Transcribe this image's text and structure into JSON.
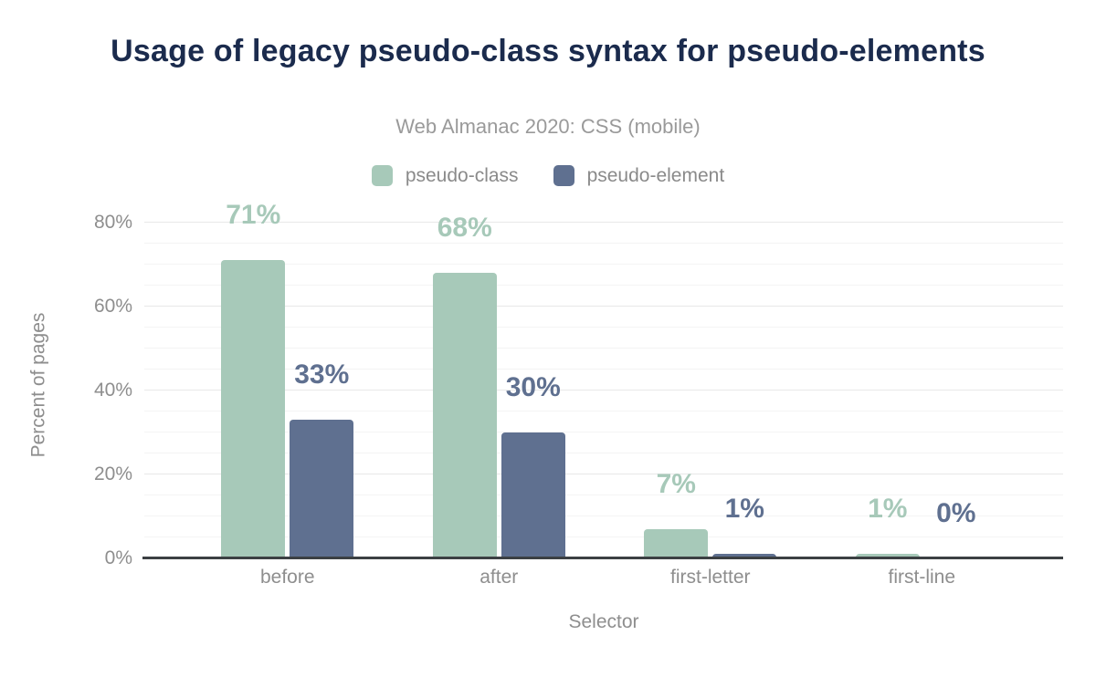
{
  "chart_data": {
    "type": "bar",
    "title": "Usage of legacy pseudo-class syntax for pseudo-elements",
    "subtitle": "Web Almanac 2020: CSS (mobile)",
    "categories": [
      "before",
      "after",
      "first-letter",
      "first-line"
    ],
    "series": [
      {
        "name": "pseudo-class",
        "color": "#a7c9b9",
        "values": [
          71,
          68,
          7,
          1
        ],
        "labels": [
          "71%",
          "68%",
          "7%",
          "1%"
        ]
      },
      {
        "name": "pseudo-element",
        "color": "#5f7090",
        "values": [
          33,
          30,
          1,
          0
        ],
        "labels": [
          "33%",
          "30%",
          "1%",
          "0%"
        ]
      }
    ],
    "xlabel": "Selector",
    "ylabel": "Percent of pages",
    "unit": "%",
    "yticks": [
      {
        "label": "0%",
        "value": 0
      },
      {
        "label": "20%",
        "value": 20
      },
      {
        "label": "40%",
        "value": 40
      },
      {
        "label": "60%",
        "value": 60
      },
      {
        "label": "80%",
        "value": 80
      }
    ],
    "ylim": [
      0,
      85
    ],
    "grid": {
      "orientation": "horizontal",
      "minor_step": 5,
      "major_step": 20,
      "max": 80
    },
    "legend_position": "top"
  },
  "colors": {
    "title": "#1b2b4d",
    "subtitle": "#9a9a9a",
    "axis_text": "#8e8e8e",
    "axis_line": "#3c4043",
    "grid_major": "#e8e8e8",
    "grid_minor": "#f4f4f4",
    "background": "#ffffff"
  }
}
